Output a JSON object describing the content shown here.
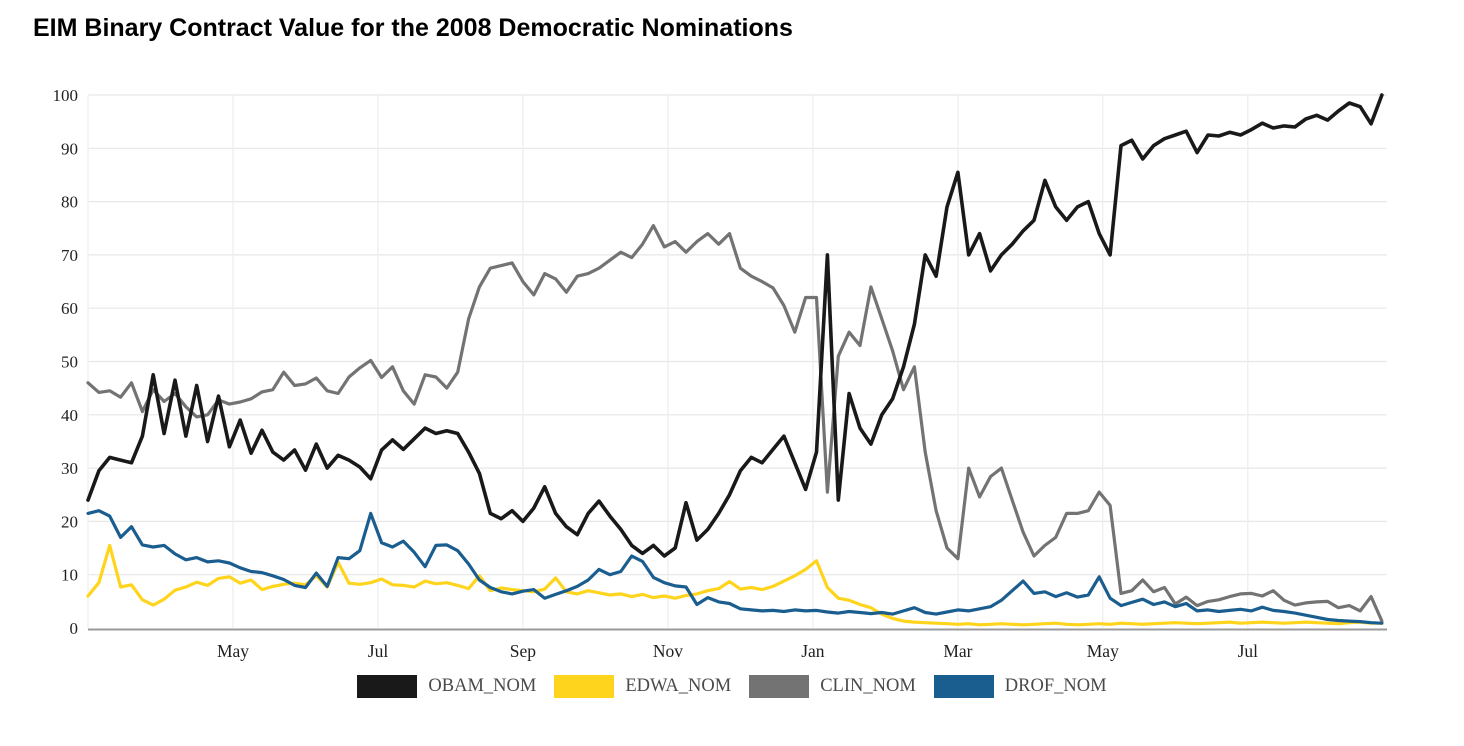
{
  "page": {
    "title": "EIM Binary Contract Value for the 2008 Democratic Nominations"
  },
  "chart_data": {
    "type": "line",
    "title": "EIM Binary Contract Value for the 2008 Democratic Nominations",
    "xlabel": "",
    "ylabel": "",
    "x_unit": "months from March 2007 (t_step spacing between points)",
    "xlim": [
      0,
      17.92
    ],
    "t_step": 0.15,
    "ylim": [
      0,
      100
    ],
    "y_ticks": [
      0,
      10,
      20,
      30,
      40,
      50,
      60,
      70,
      80,
      90,
      100
    ],
    "x_ticks": [
      {
        "t": 2,
        "label": "May"
      },
      {
        "t": 4,
        "label": "Jul"
      },
      {
        "t": 6,
        "label": "Sep"
      },
      {
        "t": 8,
        "label": "Nov"
      },
      {
        "t": 10,
        "label": "Jan"
      },
      {
        "t": 12,
        "label": "Mar"
      },
      {
        "t": 14,
        "label": "May"
      },
      {
        "t": 16,
        "label": "Jul"
      }
    ],
    "grid": true,
    "legend_position": "bottom",
    "series": [
      {
        "name": "OBAM_NOM",
        "color": "#191919",
        "values": [
          24,
          29.5,
          32,
          31.5,
          31,
          36,
          47.5,
          36.5,
          46.5,
          36,
          45.5,
          35,
          43.5,
          34,
          39,
          32.8,
          37.1,
          33,
          31.5,
          33.4,
          29.6,
          34.5,
          30,
          32.4,
          31.5,
          30.2,
          28,
          33.4,
          35.3,
          33.5,
          35.5,
          37.5,
          36.5,
          37,
          36.5,
          33,
          29,
          21.5,
          20.5,
          22,
          20,
          22.5,
          26.5,
          21.5,
          19,
          17.5,
          21.5,
          23.8,
          21,
          18.5,
          15.5,
          14,
          15.5,
          13.5,
          15,
          23.5,
          16.5,
          18.5,
          21.5,
          25,
          29.5,
          32,
          31,
          33.5,
          36,
          31,
          26,
          33,
          70,
          24,
          44,
          37.5,
          34.5,
          40,
          43,
          49,
          57,
          70,
          66,
          79,
          85.5,
          70,
          74,
          67,
          70,
          72,
          74.5,
          76.5,
          84,
          79,
          76.5,
          79,
          80,
          74,
          70,
          90.5,
          91.5,
          88,
          90.5,
          91.8,
          92.5,
          93.2,
          89.2,
          92.5,
          92.3,
          93,
          92.5,
          93.5,
          94.7,
          93.8,
          94.2,
          94,
          95.5,
          96.2,
          95.3,
          97,
          98.5,
          97.8,
          94.6,
          100
        ]
      },
      {
        "name": "EDWA_NOM",
        "color": "#ffd41c",
        "values": [
          6,
          8.5,
          15.5,
          7.7,
          8.1,
          5.3,
          4.3,
          5.4,
          7.1,
          7.7,
          8.6,
          8,
          9.3,
          9.6,
          8.4,
          9,
          7.2,
          7.8,
          8.2,
          8.4,
          8.1,
          9.8,
          7.7,
          12.3,
          8.4,
          8.2,
          8.5,
          9.2,
          8.1,
          8,
          7.7,
          8.8,
          8.3,
          8.5,
          8,
          7.4,
          9.8,
          7,
          7.5,
          7.2,
          7,
          6.8,
          7.3,
          9.4,
          6.8,
          6.4,
          7,
          6.6,
          6.2,
          6.4,
          5.9,
          6.3,
          5.7,
          6,
          5.6,
          6.1,
          6.4,
          7,
          7.4,
          8.7,
          7.3,
          7.6,
          7.2,
          7.8,
          8.8,
          9.8,
          11,
          12.6,
          7.6,
          5.6,
          5.2,
          4.4,
          3.8,
          2.6,
          1.8,
          1.3,
          1.1,
          1,
          0.9,
          0.8,
          0.7,
          0.8,
          0.6,
          0.7,
          0.8,
          0.7,
          0.6,
          0.7,
          0.8,
          0.9,
          0.7,
          0.6,
          0.7,
          0.8,
          0.7,
          0.9,
          0.8,
          0.7,
          0.8,
          0.9,
          1,
          0.9,
          0.8,
          0.9,
          1,
          1.1,
          0.9,
          1,
          1.1,
          1,
          0.9,
          1,
          1.1,
          1,
          0.9,
          0.8,
          1,
          1.1,
          0.9,
          0.9
        ]
      },
      {
        "name": "CLIN_NOM",
        "color": "#737373",
        "values": [
          46,
          44.2,
          44.5,
          43.3,
          46,
          40.6,
          44.7,
          42.5,
          44,
          41.5,
          39.6,
          40,
          42.8,
          42,
          42.4,
          43,
          44.3,
          44.7,
          48,
          45.5,
          45.8,
          46.9,
          44.5,
          44,
          47.1,
          48.8,
          50.2,
          47,
          49,
          44.5,
          42,
          47.5,
          47.1,
          45,
          48,
          58,
          64,
          67.5,
          68,
          68.5,
          65,
          62.5,
          66.5,
          65.5,
          63,
          66,
          66.5,
          67.5,
          69,
          70.5,
          69.5,
          72,
          75.5,
          71.5,
          72.5,
          70.5,
          72.5,
          74,
          72,
          74,
          67.5,
          66,
          65,
          63.8,
          60.5,
          55.5,
          62,
          62,
          25.5,
          51,
          55.5,
          53,
          64,
          58,
          52,
          44.7,
          49,
          33,
          22,
          15,
          13,
          30,
          24.6,
          28.4,
          30,
          24,
          18,
          13.5,
          15.5,
          17,
          21.5,
          21.5,
          22,
          25.5,
          23,
          6.5,
          7,
          9,
          6.8,
          7.6,
          4.5,
          5.8,
          4.2,
          5,
          5.3,
          5.9,
          6.4,
          6.5,
          6,
          7,
          5.2,
          4.3,
          4.7,
          4.9,
          5,
          3.8,
          4.2,
          3.2,
          5.9,
          1.3
        ]
      },
      {
        "name": "DROF_NOM",
        "color": "#1a5d8f",
        "values": [
          21.5,
          22,
          21,
          17,
          19,
          15.6,
          15.2,
          15.5,
          13.9,
          12.8,
          13.2,
          12.4,
          12.6,
          12.2,
          11.3,
          10.6,
          10.4,
          9.8,
          9.1,
          8,
          7.6,
          10.3,
          7.8,
          13.2,
          13,
          14.5,
          21.5,
          16,
          15.2,
          16.3,
          14.2,
          11.5,
          15.5,
          15.6,
          14.5,
          12,
          9,
          7.6,
          6.8,
          6.4,
          6.9,
          7.2,
          5.6,
          6.3,
          7,
          7.8,
          9,
          11,
          10,
          10.6,
          13.5,
          12.5,
          9.5,
          8.5,
          7.9,
          7.7,
          4.4,
          5.7,
          4.9,
          4.6,
          3.6,
          3.4,
          3.2,
          3.3,
          3.1,
          3.4,
          3.2,
          3.3,
          3,
          2.8,
          3.1,
          2.9,
          2.7,
          2.9,
          2.6,
          3.2,
          3.8,
          2.9,
          2.6,
          3,
          3.4,
          3.2,
          3.6,
          4,
          5.2,
          7,
          8.8,
          6.5,
          6.8,
          5.9,
          6.6,
          5.8,
          6.2,
          9.6,
          5.6,
          4.2,
          4.8,
          5.4,
          4.4,
          4.9,
          4,
          4.6,
          3.2,
          3.4,
          3.1,
          3.3,
          3.5,
          3.2,
          3.9,
          3.3,
          3.1,
          2.8,
          2.4,
          2,
          1.6,
          1.4,
          1.3,
          1.2,
          1,
          0.9
        ]
      }
    ],
    "legend": [
      "OBAM_NOM",
      "EDWA_NOM",
      "CLIN_NOM",
      "DROF_NOM"
    ]
  }
}
